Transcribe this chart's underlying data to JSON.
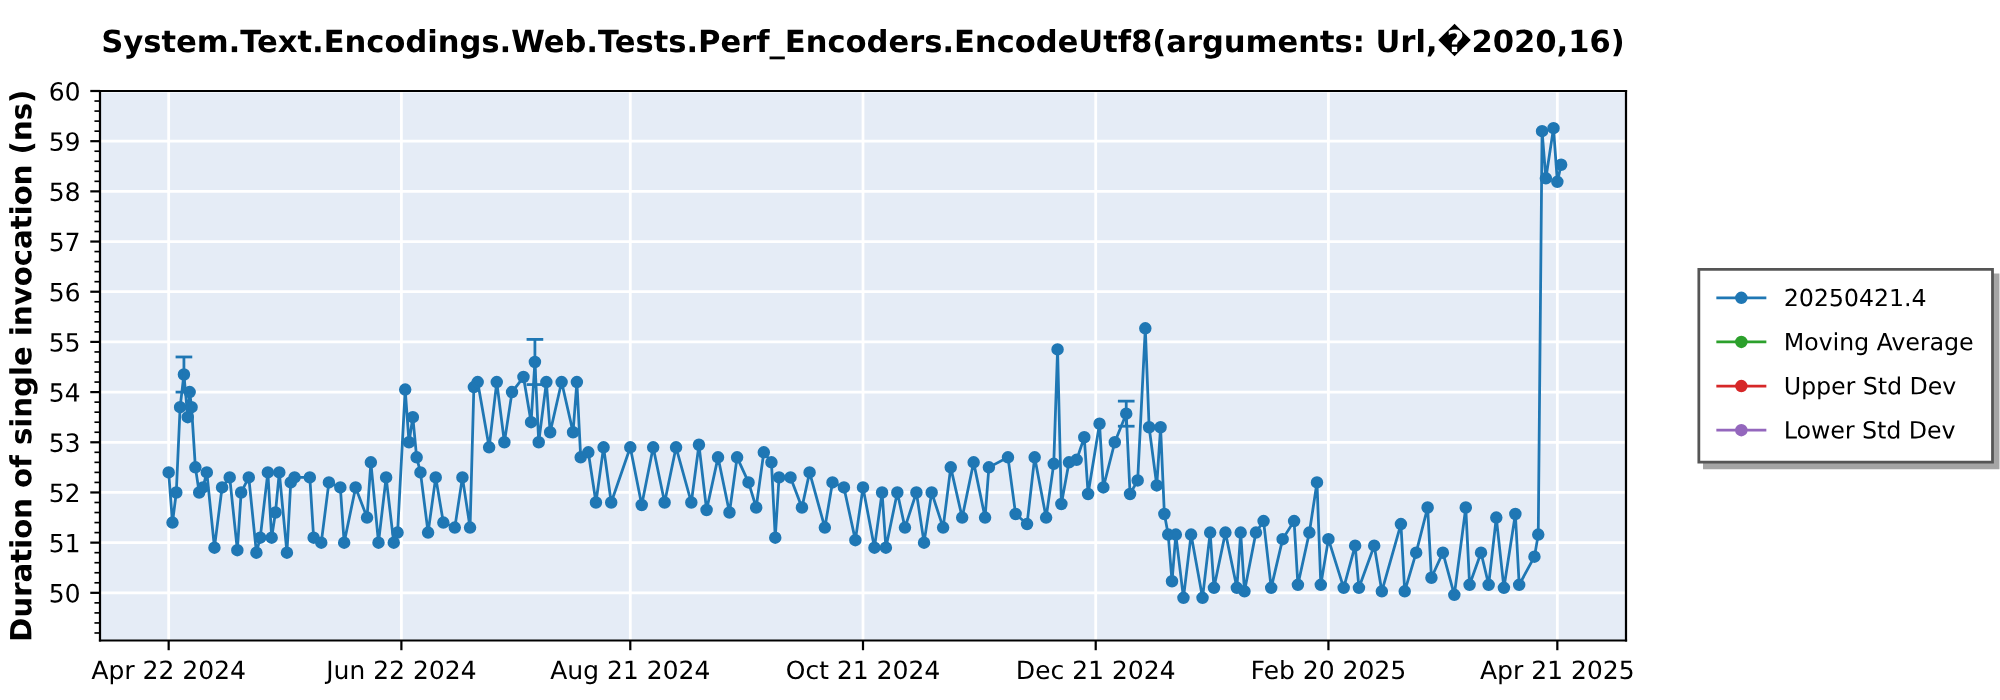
{
  "chart_data": {
    "type": "line",
    "title": "System.Text.Encodings.Web.Tests.Perf_Encoders.EncodeUtf8(arguments: Url,�2020,16)",
    "ylabel": "Duration of single invocation (ns)",
    "xlim": [
      "2024-04-04",
      "2025-05-09"
    ],
    "xticks": [
      {
        "value": "2024-04-22",
        "label": "Apr 22 2024"
      },
      {
        "value": "2024-06-22",
        "label": "Jun 22 2024"
      },
      {
        "value": "2024-08-21",
        "label": "Aug 21 2024"
      },
      {
        "value": "2024-10-21",
        "label": "Oct 21 2024"
      },
      {
        "value": "2024-12-21",
        "label": "Dec 21 2024"
      },
      {
        "value": "2025-02-20",
        "label": "Feb 20 2025"
      },
      {
        "value": "2025-04-21",
        "label": "Apr 21 2025"
      }
    ],
    "ylim": [
      49.05,
      60
    ],
    "yticks": [
      50,
      51,
      52,
      53,
      54,
      55,
      56,
      57,
      58,
      59,
      60
    ],
    "grid": true,
    "legend": "right",
    "marker": "circle",
    "line_style": "solid",
    "series": [
      {
        "name": "20250421.4",
        "color": "#1f77b4",
        "x": [
          "2024-04-22",
          "2024-04-23",
          "2024-04-24",
          "2024-04-25",
          "2024-04-26",
          "2024-04-27",
          "2024-04-27T12:00",
          "2024-04-28",
          "2024-04-29",
          "2024-04-30",
          "2024-05-01",
          "2024-05-02",
          "2024-05-04",
          "2024-05-06",
          "2024-05-08",
          "2024-05-10",
          "2024-05-11",
          "2024-05-13",
          "2024-05-15",
          "2024-05-16",
          "2024-05-18",
          "2024-05-19",
          "2024-05-20",
          "2024-05-21",
          "2024-05-23",
          "2024-05-24",
          "2024-05-25",
          "2024-05-29",
          "2024-05-30",
          "2024-06-01",
          "2024-06-03",
          "2024-06-06",
          "2024-06-07",
          "2024-06-10",
          "2024-06-13",
          "2024-06-14",
          "2024-06-16",
          "2024-06-18",
          "2024-06-20",
          "2024-06-21",
          "2024-06-23",
          "2024-06-24",
          "2024-06-25",
          "2024-06-26",
          "2024-06-27",
          "2024-06-29",
          "2024-07-01",
          "2024-07-03",
          "2024-07-06",
          "2024-07-08",
          "2024-07-10",
          "2024-07-11",
          "2024-07-12",
          "2024-07-15",
          "2024-07-17",
          "2024-07-19",
          "2024-07-21",
          "2024-07-24",
          "2024-07-26",
          "2024-07-27",
          "2024-07-28",
          "2024-07-30",
          "2024-07-31",
          "2024-08-03",
          "2024-08-06",
          "2024-08-07",
          "2024-08-08",
          "2024-08-10",
          "2024-08-12",
          "2024-08-14",
          "2024-08-16",
          "2024-08-21",
          "2024-08-24",
          "2024-08-27",
          "2024-08-30",
          "2024-09-02",
          "2024-09-06",
          "2024-09-08",
          "2024-09-10",
          "2024-09-13",
          "2024-09-16",
          "2024-09-18",
          "2024-09-21",
          "2024-09-23",
          "2024-09-25",
          "2024-09-27",
          "2024-09-28",
          "2024-09-29",
          "2024-10-02",
          "2024-10-05",
          "2024-10-07",
          "2024-10-11",
          "2024-10-13",
          "2024-10-16",
          "2024-10-19",
          "2024-10-21",
          "2024-10-24",
          "2024-10-26",
          "2024-10-27",
          "2024-10-30",
          "2024-11-01",
          "2024-11-04",
          "2024-11-06",
          "2024-11-08",
          "2024-11-11",
          "2024-11-13",
          "2024-11-16",
          "2024-11-19",
          "2024-11-22",
          "2024-11-23",
          "2024-11-28",
          "2024-11-30",
          "2024-12-03",
          "2024-12-05",
          "2024-12-08",
          "2024-12-10",
          "2024-12-11",
          "2024-12-12",
          "2024-12-14",
          "2024-12-16",
          "2024-12-18",
          "2024-12-19",
          "2024-12-22",
          "2024-12-23",
          "2024-12-26",
          "2024-12-29",
          "2024-12-30",
          "2025-01-01",
          "2025-01-03",
          "2025-01-04",
          "2025-01-06",
          "2025-01-07",
          "2025-01-08",
          "2025-01-09",
          "2025-01-10",
          "2025-01-11",
          "2025-01-13",
          "2025-01-15",
          "2025-01-18",
          "2025-01-20",
          "2025-01-21",
          "2025-01-24",
          "2025-01-27",
          "2025-01-28",
          "2025-01-29",
          "2025-02-01",
          "2025-02-03",
          "2025-02-05",
          "2025-02-08",
          "2025-02-11",
          "2025-02-12",
          "2025-02-15",
          "2025-02-17",
          "2025-02-18",
          "2025-02-20",
          "2025-02-24",
          "2025-02-27",
          "2025-02-28",
          "2025-03-04",
          "2025-03-06",
          "2025-03-11",
          "2025-03-12",
          "2025-03-15",
          "2025-03-18",
          "2025-03-19",
          "2025-03-22",
          "2025-03-25",
          "2025-03-28",
          "2025-03-29",
          "2025-04-01",
          "2025-04-03",
          "2025-04-05",
          "2025-04-07",
          "2025-04-10",
          "2025-04-11",
          "2025-04-15",
          "2025-04-16",
          "2025-04-17",
          "2025-04-18",
          "2025-04-20",
          "2025-04-21",
          "2025-04-22"
        ],
        "values": [
          52.4,
          51.4,
          52.0,
          53.7,
          54.35,
          53.5,
          54.0,
          53.7,
          52.5,
          52.0,
          52.1,
          52.4,
          50.9,
          52.1,
          52.3,
          50.85,
          52.0,
          52.3,
          50.8,
          51.1,
          52.4,
          51.1,
          51.6,
          52.4,
          50.8,
          52.2,
          52.3,
          52.3,
          51.1,
          51.0,
          52.2,
          52.1,
          51.0,
          52.1,
          51.5,
          52.6,
          51.0,
          52.3,
          51.0,
          51.2,
          54.05,
          53.0,
          53.5,
          52.7,
          52.4,
          51.2,
          52.3,
          51.4,
          51.3,
          52.3,
          51.3,
          54.1,
          54.2,
          52.9,
          54.2,
          53.0,
          54.0,
          54.3,
          53.4,
          54.6,
          53.0,
          54.2,
          53.2,
          54.2,
          53.2,
          54.2,
          52.7,
          52.8,
          51.8,
          52.9,
          51.8,
          52.9,
          51.75,
          52.9,
          51.8,
          52.9,
          51.8,
          52.95,
          51.65,
          52.7,
          51.6,
          52.7,
          52.2,
          51.7,
          52.8,
          52.6,
          51.1,
          52.3,
          52.3,
          51.7,
          52.4,
          51.3,
          52.2,
          52.1,
          51.05,
          52.1,
          50.9,
          52.0,
          50.9,
          52.0,
          51.3,
          52.0,
          51.0,
          52.0,
          51.3,
          52.5,
          51.5,
          52.6,
          51.5,
          52.5,
          52.7,
          51.57,
          51.37,
          52.7,
          51.5,
          52.57,
          54.85,
          51.77,
          52.6,
          52.65,
          53.1,
          51.97,
          53.37,
          52.1,
          53.0,
          53.57,
          51.97,
          52.24,
          55.27,
          53.3,
          52.14,
          53.3,
          51.57,
          51.16,
          50.23,
          51.16,
          49.9,
          51.16,
          49.9,
          51.2,
          50.1,
          51.2,
          50.1,
          51.2,
          50.03,
          51.2,
          51.43,
          50.1,
          51.07,
          51.43,
          50.16,
          51.2,
          52.2,
          50.16,
          51.07,
          50.1,
          50.94,
          50.1,
          50.94,
          50.03,
          51.37,
          50.03,
          50.8,
          51.7,
          50.3,
          50.8,
          49.96,
          51.7,
          50.16,
          50.8,
          50.16,
          51.5,
          50.1,
          51.57,
          50.16,
          50.72,
          51.16,
          59.2,
          58.26,
          59.26,
          58.19,
          58.53
        ],
        "errors": [
          null,
          null,
          null,
          null,
          0.35,
          null,
          null,
          null,
          null,
          null,
          null,
          null,
          null,
          null,
          null,
          null,
          null,
          null,
          null,
          null,
          null,
          null,
          null,
          null,
          null,
          null,
          null,
          null,
          null,
          null,
          null,
          null,
          null,
          null,
          null,
          null,
          null,
          null,
          null,
          null,
          null,
          null,
          null,
          null,
          null,
          null,
          null,
          null,
          null,
          null,
          null,
          null,
          null,
          null,
          null,
          null,
          null,
          null,
          null,
          0.45,
          null,
          null,
          null,
          null,
          null,
          null,
          null,
          null,
          null,
          null,
          null,
          null,
          null,
          null,
          null,
          null,
          null,
          null,
          null,
          null,
          null,
          null,
          null,
          null,
          null,
          null,
          null,
          null,
          null,
          null,
          null,
          null,
          null,
          null,
          null,
          null,
          null,
          null,
          null,
          null,
          null,
          null,
          null,
          null,
          null,
          null,
          null,
          null,
          null,
          null,
          null,
          null,
          null,
          null,
          null,
          null,
          null,
          null,
          null,
          null,
          null,
          null,
          null,
          null,
          null,
          0.25,
          null,
          null,
          null,
          null,
          null,
          null,
          null,
          null,
          null,
          null,
          null,
          null,
          null,
          null,
          null,
          null,
          null,
          null,
          null,
          null,
          null,
          null,
          null,
          null,
          null,
          null,
          null,
          null,
          null,
          null,
          null,
          null,
          null,
          null,
          null,
          null,
          null,
          null,
          null,
          null,
          null,
          null,
          null,
          null,
          null,
          null,
          null,
          null,
          null,
          null,
          null,
          null,
          null,
          null,
          null,
          null
        ]
      },
      {
        "name": "Moving Average",
        "color": "#2ca02c"
      },
      {
        "name": "Upper Std Dev",
        "color": "#d62728"
      },
      {
        "name": "Lower Std Dev",
        "color": "#9467bd"
      }
    ]
  }
}
